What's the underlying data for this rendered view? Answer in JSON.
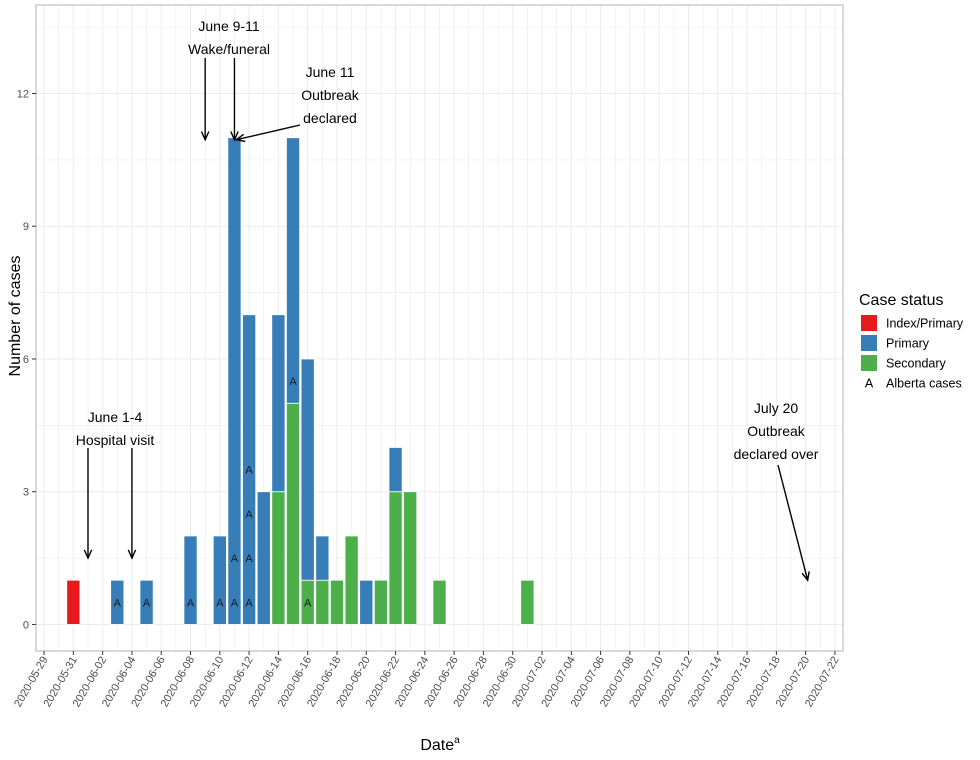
{
  "chart_data": {
    "type": "bar",
    "stacked": true,
    "xlabel": "Date",
    "xlabel_superscript": "a",
    "ylabel": "Number of cases",
    "ylim": [
      -0.6,
      14
    ],
    "yticks": [
      0,
      3,
      6,
      9,
      12
    ],
    "x_start": "2020-05-29",
    "x_end": "2020-07-22",
    "tick_step_days": 2,
    "legend": {
      "title": "Case status",
      "entries": [
        {
          "key": "index",
          "label": "Index/Primary",
          "color": "#e41a1c"
        },
        {
          "key": "primary",
          "label": "Primary",
          "color": "#377eb8"
        },
        {
          "key": "secondary",
          "label": "Secondary",
          "color": "#4daf4a"
        }
      ],
      "marker_entry": {
        "symbol": "A",
        "label": "Alberta cases"
      }
    },
    "series": [
      {
        "name": "Index/Primary",
        "key": "index",
        "color": "#e41a1c",
        "points": [
          {
            "date": "2020-05-31",
            "value": 1
          }
        ]
      },
      {
        "name": "Secondary",
        "key": "secondary",
        "color": "#4daf4a",
        "points": [
          {
            "date": "2020-06-14",
            "value": 3
          },
          {
            "date": "2020-06-15",
            "value": 5
          },
          {
            "date": "2020-06-16",
            "value": 1
          },
          {
            "date": "2020-06-17",
            "value": 1
          },
          {
            "date": "2020-06-18",
            "value": 1
          },
          {
            "date": "2020-06-19",
            "value": 2
          },
          {
            "date": "2020-06-21",
            "value": 1
          },
          {
            "date": "2020-06-22",
            "value": 3
          },
          {
            "date": "2020-06-23",
            "value": 3
          },
          {
            "date": "2020-06-25",
            "value": 1
          },
          {
            "date": "2020-07-01",
            "value": 1
          }
        ]
      },
      {
        "name": "Primary",
        "key": "primary",
        "color": "#377eb8",
        "points": [
          {
            "date": "2020-06-03",
            "value": 1
          },
          {
            "date": "2020-06-05",
            "value": 1
          },
          {
            "date": "2020-06-08",
            "value": 2
          },
          {
            "date": "2020-06-10",
            "value": 2
          },
          {
            "date": "2020-06-11",
            "value": 11
          },
          {
            "date": "2020-06-12",
            "value": 7
          },
          {
            "date": "2020-06-13",
            "value": 3
          },
          {
            "date": "2020-06-14",
            "value": 4
          },
          {
            "date": "2020-06-15",
            "value": 6
          },
          {
            "date": "2020-06-16",
            "value": 5
          },
          {
            "date": "2020-06-17",
            "value": 1
          },
          {
            "date": "2020-06-20",
            "value": 1
          },
          {
            "date": "2020-06-22",
            "value": 1
          }
        ]
      }
    ],
    "alberta_cases": [
      {
        "date": "2020-06-03",
        "count": 1
      },
      {
        "date": "2020-06-05",
        "count": 1
      },
      {
        "date": "2020-06-08",
        "count": 1
      },
      {
        "date": "2020-06-10",
        "count": 1
      },
      {
        "date": "2020-06-11",
        "count": 2
      },
      {
        "date": "2020-06-12",
        "count": 4
      },
      {
        "date": "2020-06-15",
        "count": 1,
        "at_value": 5.5
      },
      {
        "date": "2020-06-16",
        "count": 1
      }
    ],
    "annotations": [
      {
        "lines": [
          "June 1-4",
          "Hospital visit"
        ],
        "arrow_dates": [
          "2020-06-01",
          "2020-06-04"
        ],
        "arrow_tip_value": 1.5
      },
      {
        "lines": [
          "June 9-11",
          "Wake/funeral"
        ],
        "arrow_dates": [
          "2020-06-09",
          "2020-06-11"
        ],
        "arrow_tip_value": 11
      },
      {
        "lines": [
          "June 11",
          "Outbreak",
          "declared"
        ],
        "arrow_dates": [
          "2020-06-11"
        ],
        "arrow_tip_value": 11
      },
      {
        "lines": [
          "July 20",
          "Outbreak",
          "declared over"
        ],
        "arrow_dates": [
          "2020-07-20"
        ],
        "arrow_tip_value": 1
      }
    ]
  }
}
